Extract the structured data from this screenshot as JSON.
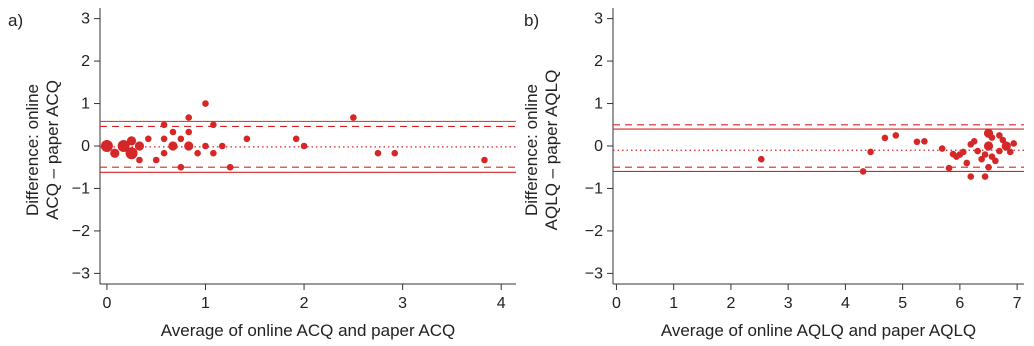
{
  "chart_data": [
    {
      "type": "scatter",
      "panel_label": "a)",
      "xlabel": "Average of online ACQ and paper ACQ",
      "ylabel_lines": [
        "Difference: online",
        "ACQ – paper ACQ"
      ],
      "xlim": [
        -0.07,
        4.15
      ],
      "ylim": [
        -3.25,
        3.25
      ],
      "xticks": [
        0,
        1,
        2,
        3,
        4
      ],
      "yticks": [
        3,
        2,
        1,
        0,
        -1,
        -2,
        -3
      ],
      "ytick_labels": [
        "3",
        "2",
        "1",
        "0",
        "−1",
        "−2",
        "−3"
      ],
      "grid": false,
      "color": "#d62728",
      "reference_lines": [
        {
          "style": "solid",
          "y": 0.58
        },
        {
          "style": "dashed",
          "y": 0.46
        },
        {
          "style": "dotted",
          "y": -0.02
        },
        {
          "style": "dashed",
          "y": -0.5
        },
        {
          "style": "solid",
          "y": -0.62
        }
      ],
      "points": [
        {
          "x": 0.0,
          "y": 0.0,
          "n": 3
        },
        {
          "x": 0.08,
          "y": -0.17,
          "n": 2
        },
        {
          "x": 0.17,
          "y": 0.0,
          "n": 3
        },
        {
          "x": 0.25,
          "y": -0.17,
          "n": 3
        },
        {
          "x": 0.25,
          "y": 0.12,
          "n": 2
        },
        {
          "x": 0.33,
          "y": 0.0,
          "n": 2
        },
        {
          "x": 0.33,
          "y": -0.33,
          "n": 1
        },
        {
          "x": 0.42,
          "y": 0.17,
          "n": 1
        },
        {
          "x": 0.5,
          "y": -0.33,
          "n": 1
        },
        {
          "x": 0.58,
          "y": -0.17,
          "n": 1
        },
        {
          "x": 0.58,
          "y": 0.17,
          "n": 1
        },
        {
          "x": 0.58,
          "y": 0.5,
          "n": 1
        },
        {
          "x": 0.67,
          "y": 0.33,
          "n": 1
        },
        {
          "x": 0.67,
          "y": 0.0,
          "n": 2
        },
        {
          "x": 0.75,
          "y": 0.17,
          "n": 1
        },
        {
          "x": 0.75,
          "y": -0.5,
          "n": 1
        },
        {
          "x": 0.83,
          "y": 0.0,
          "n": 2
        },
        {
          "x": 0.83,
          "y": 0.67,
          "n": 1
        },
        {
          "x": 0.83,
          "y": 0.33,
          "n": 1
        },
        {
          "x": 0.92,
          "y": -0.17,
          "n": 1
        },
        {
          "x": 1.0,
          "y": 1.0,
          "n": 1
        },
        {
          "x": 1.0,
          "y": 0.0,
          "n": 1
        },
        {
          "x": 1.08,
          "y": -0.17,
          "n": 1
        },
        {
          "x": 1.08,
          "y": 0.5,
          "n": 1
        },
        {
          "x": 1.17,
          "y": 0.0,
          "n": 1
        },
        {
          "x": 1.25,
          "y": -0.5,
          "n": 1
        },
        {
          "x": 1.42,
          "y": 0.17,
          "n": 1
        },
        {
          "x": 1.92,
          "y": 0.17,
          "n": 1
        },
        {
          "x": 2.0,
          "y": 0.0,
          "n": 1
        },
        {
          "x": 2.5,
          "y": 0.67,
          "n": 1
        },
        {
          "x": 2.75,
          "y": -0.17,
          "n": 1
        },
        {
          "x": 2.92,
          "y": -0.17,
          "n": 1
        },
        {
          "x": 3.83,
          "y": -0.33,
          "n": 1
        }
      ]
    },
    {
      "type": "scatter",
      "panel_label": "b)",
      "xlabel": "Average of online AQLQ and paper AQLQ",
      "ylabel_lines": [
        "Difference: online",
        "AQLQ – paper AQLQ"
      ],
      "xlim": [
        -0.06,
        7.12
      ],
      "ylim": [
        -3.25,
        3.25
      ],
      "xticks": [
        0,
        1,
        2,
        3,
        4,
        5,
        6,
        7
      ],
      "yticks": [
        3,
        2,
        1,
        0,
        -1,
        -2,
        -3
      ],
      "ytick_labels": [
        "3",
        "2",
        "1",
        "0",
        "−1",
        "−2",
        "−3"
      ],
      "grid": false,
      "color": "#d62728",
      "reference_lines": [
        {
          "style": "dashed",
          "y": 0.5
        },
        {
          "style": "solid",
          "y": 0.4
        },
        {
          "style": "dotted",
          "y": -0.1
        },
        {
          "style": "dashed",
          "y": -0.5
        },
        {
          "style": "solid",
          "y": -0.6
        }
      ],
      "points": [
        {
          "x": 2.53,
          "y": -0.31,
          "n": 1
        },
        {
          "x": 4.31,
          "y": -0.6,
          "n": 1
        },
        {
          "x": 4.44,
          "y": -0.14,
          "n": 1
        },
        {
          "x": 4.69,
          "y": 0.19,
          "n": 1
        },
        {
          "x": 4.88,
          "y": 0.25,
          "n": 1
        },
        {
          "x": 5.25,
          "y": 0.1,
          "n": 1
        },
        {
          "x": 5.38,
          "y": 0.11,
          "n": 1
        },
        {
          "x": 5.69,
          "y": -0.06,
          "n": 1
        },
        {
          "x": 5.81,
          "y": -0.52,
          "n": 1
        },
        {
          "x": 5.88,
          "y": -0.19,
          "n": 1
        },
        {
          "x": 5.94,
          "y": -0.25,
          "n": 1
        },
        {
          "x": 6.0,
          "y": -0.2,
          "n": 1
        },
        {
          "x": 6.06,
          "y": -0.14,
          "n": 1
        },
        {
          "x": 6.12,
          "y": -0.4,
          "n": 1
        },
        {
          "x": 6.19,
          "y": -0.72,
          "n": 1
        },
        {
          "x": 6.19,
          "y": 0.04,
          "n": 1
        },
        {
          "x": 6.25,
          "y": 0.11,
          "n": 1
        },
        {
          "x": 6.31,
          "y": -0.12,
          "n": 1
        },
        {
          "x": 6.38,
          "y": -0.31,
          "n": 1
        },
        {
          "x": 6.44,
          "y": -0.72,
          "n": 1
        },
        {
          "x": 6.44,
          "y": -0.2,
          "n": 1
        },
        {
          "x": 6.5,
          "y": 0.3,
          "n": 2
        },
        {
          "x": 6.5,
          "y": 0.0,
          "n": 2
        },
        {
          "x": 6.5,
          "y": -0.5,
          "n": 1
        },
        {
          "x": 6.56,
          "y": 0.2,
          "n": 1
        },
        {
          "x": 6.56,
          "y": -0.25,
          "n": 1
        },
        {
          "x": 6.62,
          "y": -0.35,
          "n": 1
        },
        {
          "x": 6.69,
          "y": 0.25,
          "n": 1
        },
        {
          "x": 6.69,
          "y": -0.12,
          "n": 1
        },
        {
          "x": 6.75,
          "y": 0.14,
          "n": 1
        },
        {
          "x": 6.81,
          "y": 0.0,
          "n": 2
        },
        {
          "x": 6.88,
          "y": -0.14,
          "n": 1
        },
        {
          "x": 6.94,
          "y": 0.06,
          "n": 1
        }
      ]
    }
  ]
}
